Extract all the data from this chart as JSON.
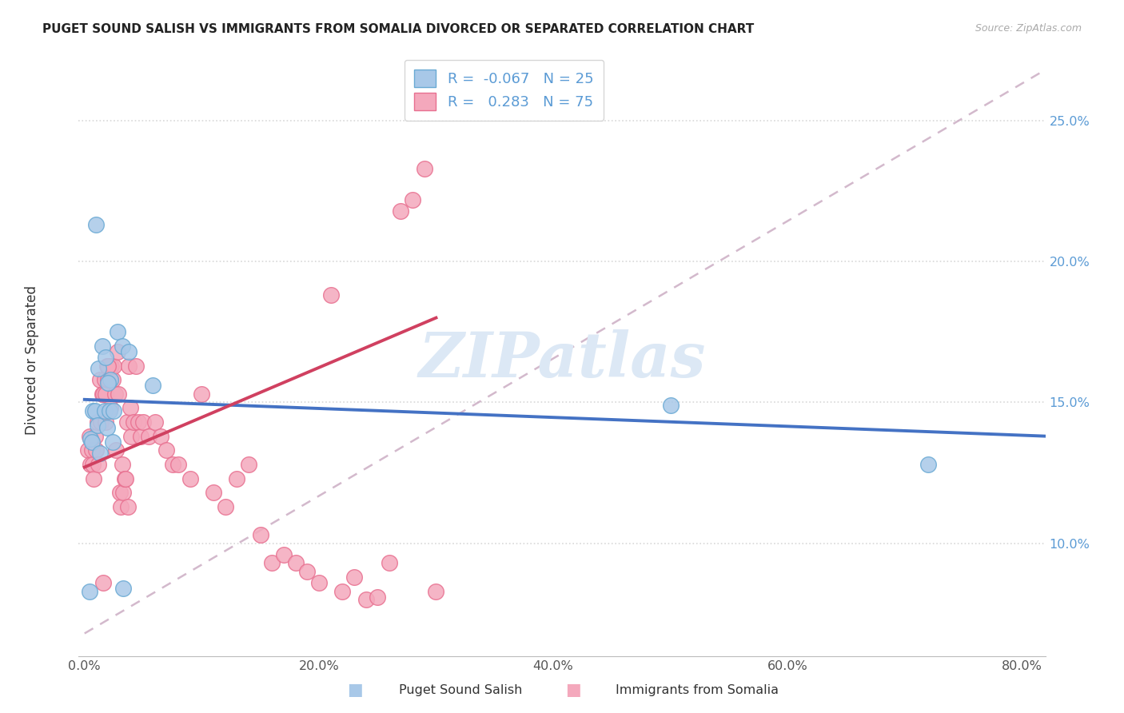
{
  "title": "PUGET SOUND SALISH VS IMMIGRANTS FROM SOMALIA DIVORCED OR SEPARATED CORRELATION CHART",
  "source": "Source: ZipAtlas.com",
  "ylabel": "Divorced or Separated",
  "xtick_labels": [
    "0.0%",
    "20.0%",
    "40.0%",
    "60.0%",
    "80.0%"
  ],
  "xtick_vals": [
    0.0,
    0.2,
    0.4,
    0.6,
    0.8
  ],
  "ytick_labels": [
    "10.0%",
    "15.0%",
    "20.0%",
    "25.0%"
  ],
  "ytick_vals": [
    0.1,
    0.15,
    0.2,
    0.25
  ],
  "xlim": [
    -0.005,
    0.82
  ],
  "ylim": [
    0.06,
    0.27
  ],
  "blue_R": -0.067,
  "blue_N": 25,
  "pink_R": 0.283,
  "pink_N": 75,
  "blue_label": "Puget Sound Salish",
  "pink_label": "Immigrants from Somalia",
  "blue_fill": "#a8c8e8",
  "pink_fill": "#f4a8bc",
  "blue_edge": "#6aaad4",
  "pink_edge": "#e87090",
  "blue_line": "#4472c4",
  "pink_line": "#d04060",
  "diag_color": "#c8a8c0",
  "watermark_text": "ZIPatlas",
  "watermark_color": "#dce8f5",
  "grid_color": "#d8d8d8",
  "right_tick_color": "#5b9bd5",
  "bottom_tick_color": "#555555",
  "title_color": "#222222",
  "source_color": "#aaaaaa",
  "label_color": "#333333",
  "blue_x": [
    0.007,
    0.012,
    0.015,
    0.018,
    0.022,
    0.028,
    0.032,
    0.038,
    0.005,
    0.009,
    0.011,
    0.017,
    0.021,
    0.025,
    0.058,
    0.006,
    0.013,
    0.019,
    0.024,
    0.5,
    0.72,
    0.01,
    0.02,
    0.004,
    0.033
  ],
  "blue_y": [
    0.147,
    0.162,
    0.17,
    0.166,
    0.158,
    0.175,
    0.17,
    0.168,
    0.137,
    0.147,
    0.142,
    0.147,
    0.147,
    0.147,
    0.156,
    0.136,
    0.132,
    0.141,
    0.136,
    0.149,
    0.128,
    0.213,
    0.157,
    0.083,
    0.084
  ],
  "pink_x": [
    0.003,
    0.004,
    0.005,
    0.006,
    0.007,
    0.008,
    0.009,
    0.01,
    0.011,
    0.012,
    0.013,
    0.014,
    0.015,
    0.016,
    0.017,
    0.018,
    0.019,
    0.02,
    0.021,
    0.022,
    0.023,
    0.024,
    0.025,
    0.026,
    0.027,
    0.028,
    0.029,
    0.03,
    0.031,
    0.032,
    0.033,
    0.034,
    0.035,
    0.036,
    0.037,
    0.038,
    0.039,
    0.04,
    0.042,
    0.044,
    0.046,
    0.048,
    0.05,
    0.055,
    0.06,
    0.065,
    0.07,
    0.075,
    0.08,
    0.09,
    0.1,
    0.11,
    0.12,
    0.13,
    0.14,
    0.15,
    0.16,
    0.17,
    0.18,
    0.19,
    0.2,
    0.21,
    0.22,
    0.23,
    0.24,
    0.25,
    0.26,
    0.27,
    0.28,
    0.29,
    0.3,
    0.016,
    0.018,
    0.02,
    0.022
  ],
  "pink_y": [
    0.133,
    0.138,
    0.128,
    0.133,
    0.128,
    0.123,
    0.138,
    0.133,
    0.143,
    0.128,
    0.158,
    0.143,
    0.153,
    0.153,
    0.158,
    0.153,
    0.163,
    0.158,
    0.163,
    0.158,
    0.163,
    0.158,
    0.163,
    0.153,
    0.133,
    0.168,
    0.153,
    0.118,
    0.113,
    0.128,
    0.118,
    0.123,
    0.123,
    0.143,
    0.113,
    0.163,
    0.148,
    0.138,
    0.143,
    0.163,
    0.143,
    0.138,
    0.143,
    0.138,
    0.143,
    0.138,
    0.133,
    0.128,
    0.128,
    0.123,
    0.153,
    0.118,
    0.113,
    0.123,
    0.128,
    0.103,
    0.093,
    0.096,
    0.093,
    0.09,
    0.086,
    0.188,
    0.083,
    0.088,
    0.08,
    0.081,
    0.093,
    0.218,
    0.222,
    0.233,
    0.083,
    0.086,
    0.143,
    0.163,
    0.148
  ]
}
